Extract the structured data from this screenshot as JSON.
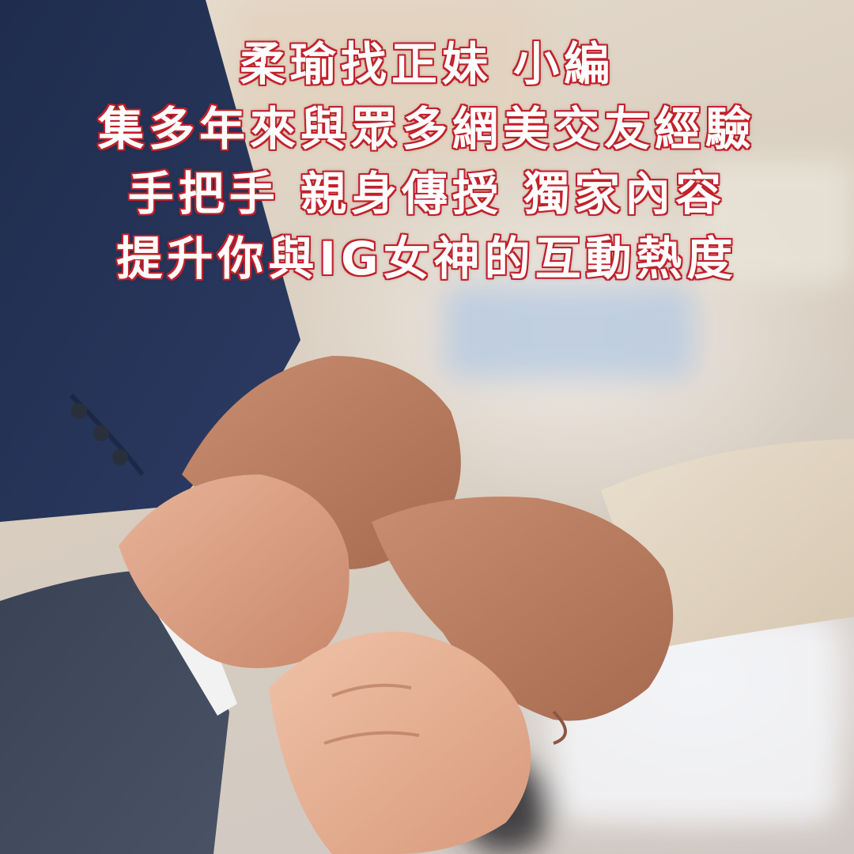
{
  "caption": {
    "line1": "柔瑜找正妹 小編",
    "line2": "集多年來與眾多網美交友經驗",
    "line3": "手把手 親身傳授 獨家內容",
    "line4": "提升你與IG女神的互動熱度"
  },
  "colors": {
    "text_fill": "#ffffff",
    "text_outline": "#c0212b"
  }
}
